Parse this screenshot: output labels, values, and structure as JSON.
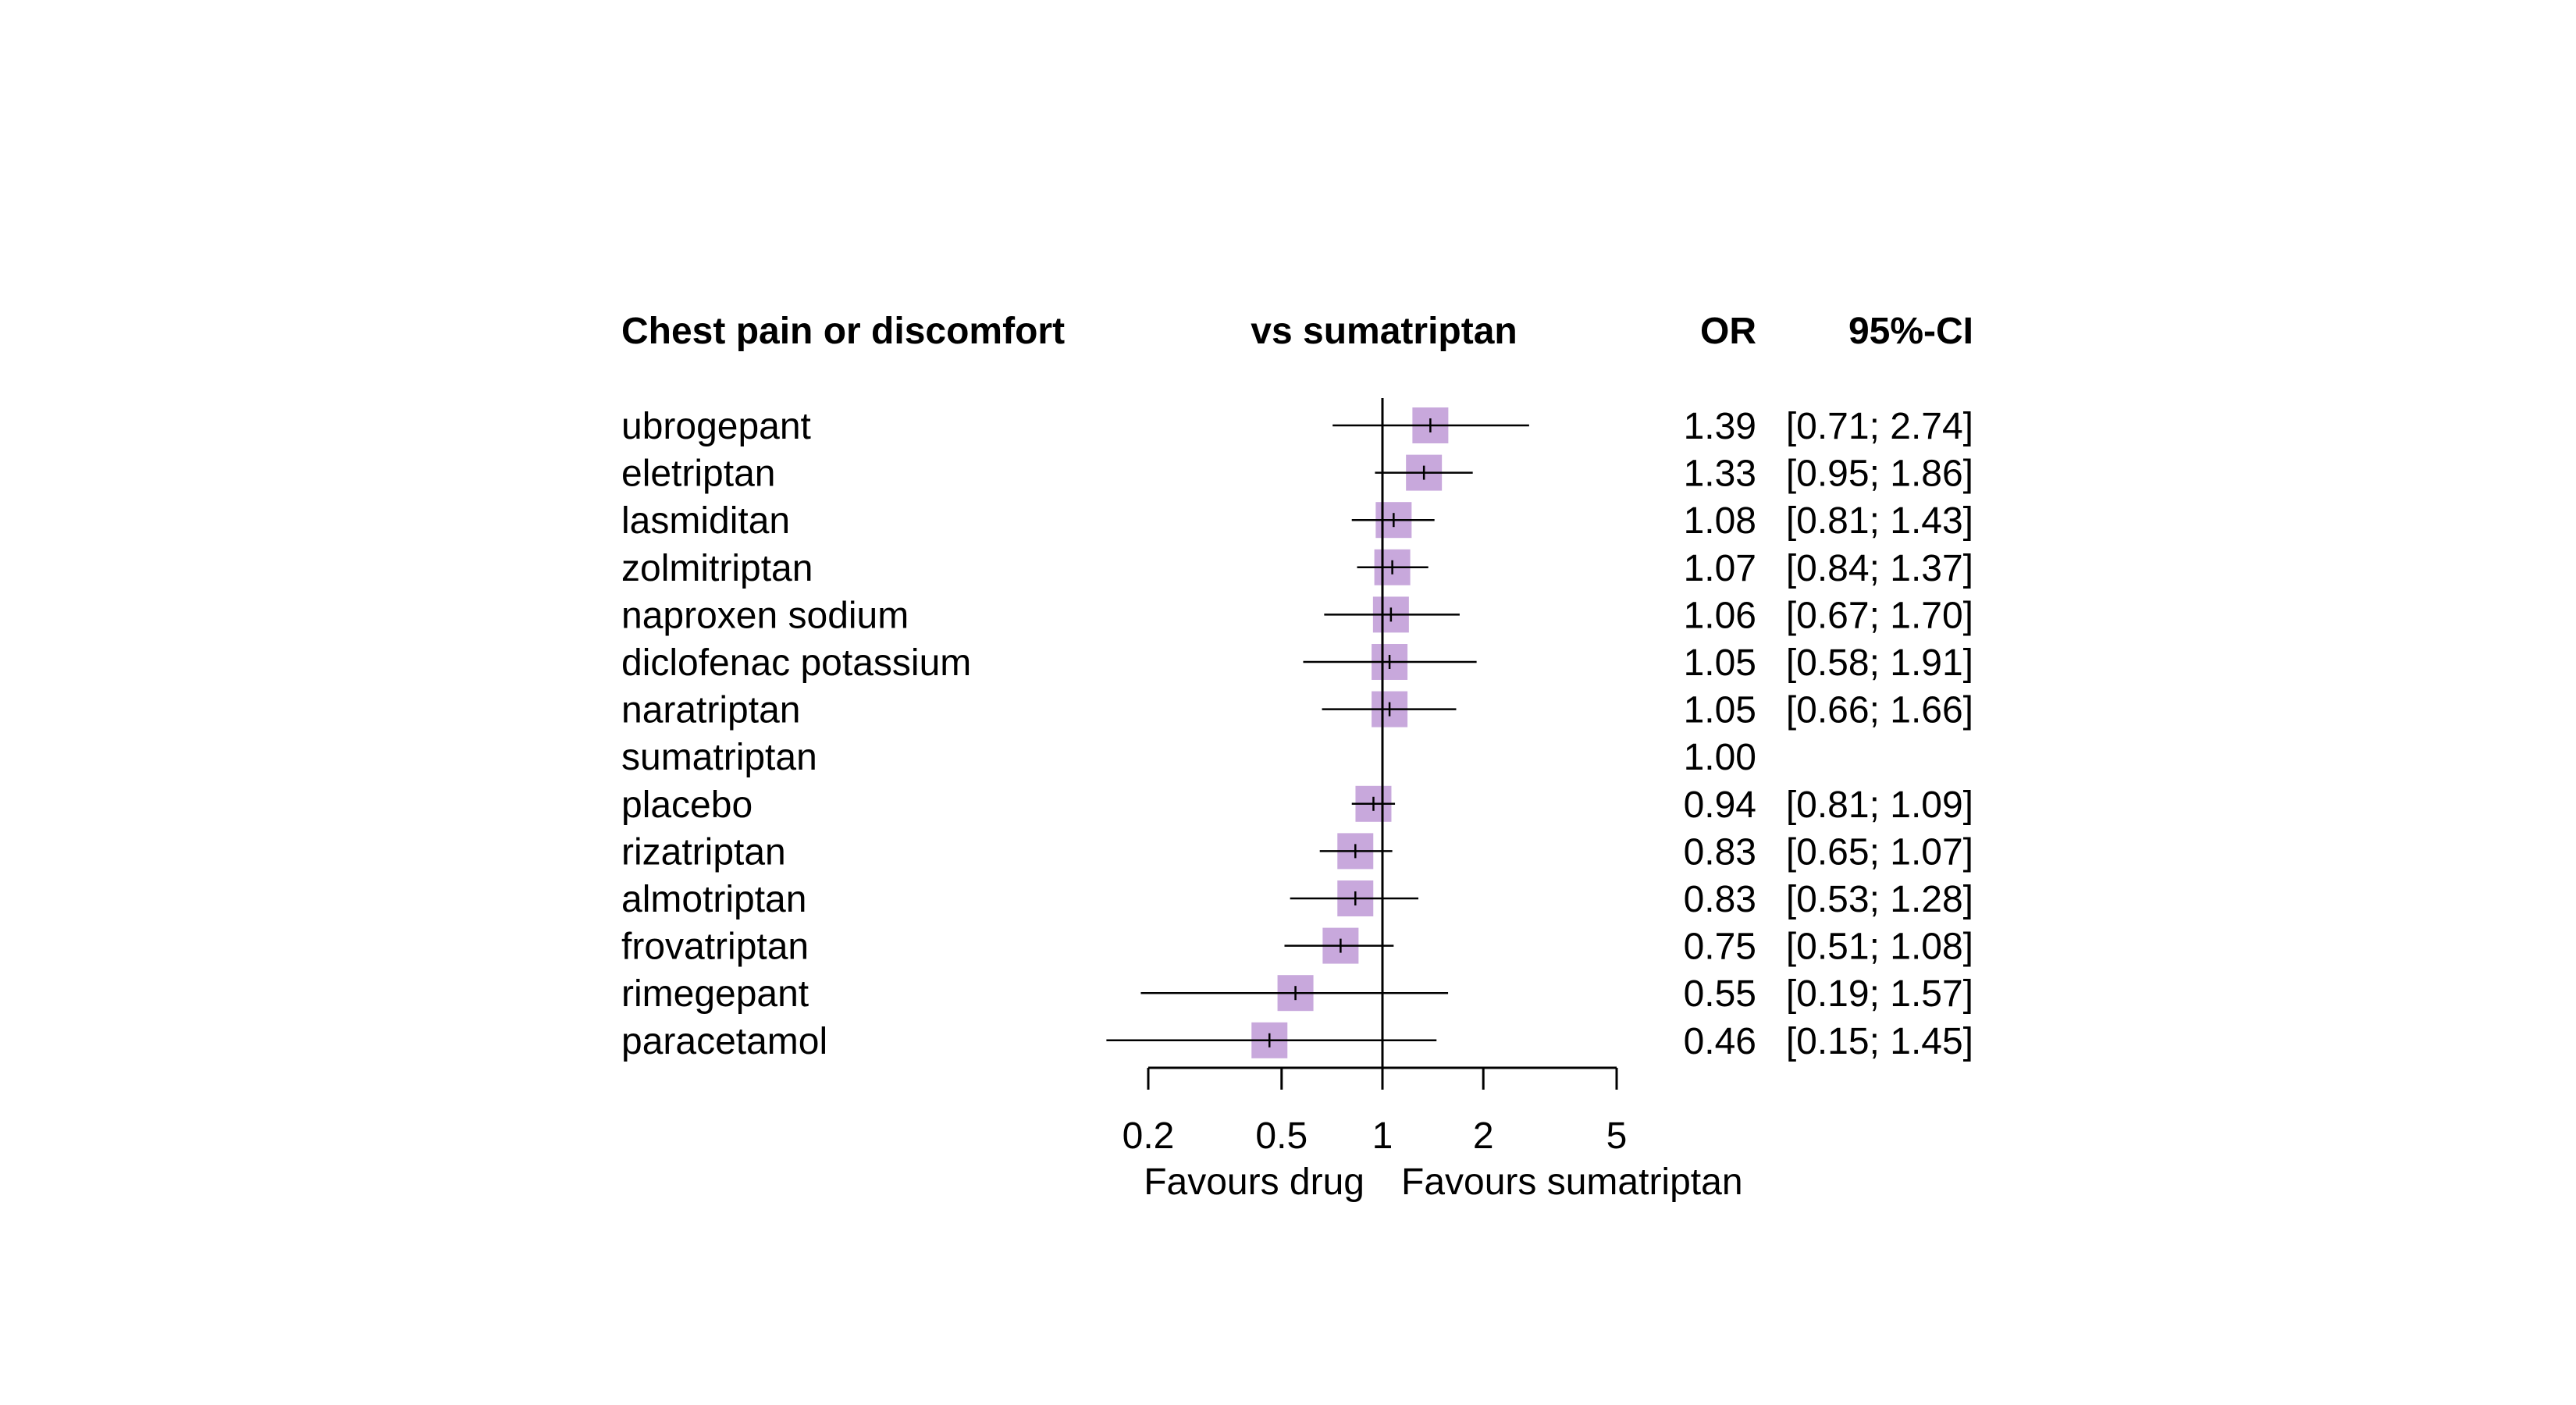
{
  "chart_data": {
    "type": "forest",
    "title": "Chest pain or discomfort",
    "comparison_header": "vs sumatriptan",
    "or_header": "OR",
    "ci_header": "95%-CI",
    "xlabel_left": "Favours drug",
    "xlabel_right": "Favours sumatriptan",
    "x_scale": "log",
    "reference_value": 1,
    "xlim": [
      0.2,
      5
    ],
    "x_ticks": [
      0.2,
      0.5,
      1,
      2,
      5
    ],
    "x_tick_labels": [
      "0.2",
      "0.5",
      "1",
      "2",
      "5"
    ],
    "marker_color": "#c8a8dc",
    "line_color": "#000000",
    "grid": false,
    "rows": [
      {
        "treatment": "ubrogepant",
        "or": 1.39,
        "lower": 0.71,
        "upper": 2.74,
        "or_text": "1.39",
        "ci_text": "[0.71; 2.74]"
      },
      {
        "treatment": "eletriptan",
        "or": 1.33,
        "lower": 0.95,
        "upper": 1.86,
        "or_text": "1.33",
        "ci_text": "[0.95; 1.86]"
      },
      {
        "treatment": "lasmiditan",
        "or": 1.08,
        "lower": 0.81,
        "upper": 1.43,
        "or_text": "1.08",
        "ci_text": "[0.81; 1.43]"
      },
      {
        "treatment": "zolmitriptan",
        "or": 1.07,
        "lower": 0.84,
        "upper": 1.37,
        "or_text": "1.07",
        "ci_text": "[0.84; 1.37]"
      },
      {
        "treatment": "naproxen sodium",
        "or": 1.06,
        "lower": 0.67,
        "upper": 1.7,
        "or_text": "1.06",
        "ci_text": "[0.67; 1.70]"
      },
      {
        "treatment": "diclofenac potassium",
        "or": 1.05,
        "lower": 0.58,
        "upper": 1.91,
        "or_text": "1.05",
        "ci_text": "[0.58; 1.91]"
      },
      {
        "treatment": "naratriptan",
        "or": 1.05,
        "lower": 0.66,
        "upper": 1.66,
        "or_text": "1.05",
        "ci_text": "[0.66; 1.66]"
      },
      {
        "treatment": "sumatriptan",
        "or": 1.0,
        "lower": null,
        "upper": null,
        "or_text": "1.00",
        "ci_text": ""
      },
      {
        "treatment": "placebo",
        "or": 0.94,
        "lower": 0.81,
        "upper": 1.09,
        "or_text": "0.94",
        "ci_text": "[0.81; 1.09]"
      },
      {
        "treatment": "rizatriptan",
        "or": 0.83,
        "lower": 0.65,
        "upper": 1.07,
        "or_text": "0.83",
        "ci_text": "[0.65; 1.07]"
      },
      {
        "treatment": "almotriptan",
        "or": 0.83,
        "lower": 0.53,
        "upper": 1.28,
        "or_text": "0.83",
        "ci_text": "[0.53; 1.28]"
      },
      {
        "treatment": "frovatriptan",
        "or": 0.75,
        "lower": 0.51,
        "upper": 1.08,
        "or_text": "0.75",
        "ci_text": "[0.51; 1.08]"
      },
      {
        "treatment": "rimegepant",
        "or": 0.55,
        "lower": 0.19,
        "upper": 1.57,
        "or_text": "0.55",
        "ci_text": "[0.19; 1.57]"
      },
      {
        "treatment": "paracetamol",
        "or": 0.46,
        "lower": 0.15,
        "upper": 1.45,
        "or_text": "0.46",
        "ci_text": "[0.15; 1.45]"
      }
    ]
  }
}
